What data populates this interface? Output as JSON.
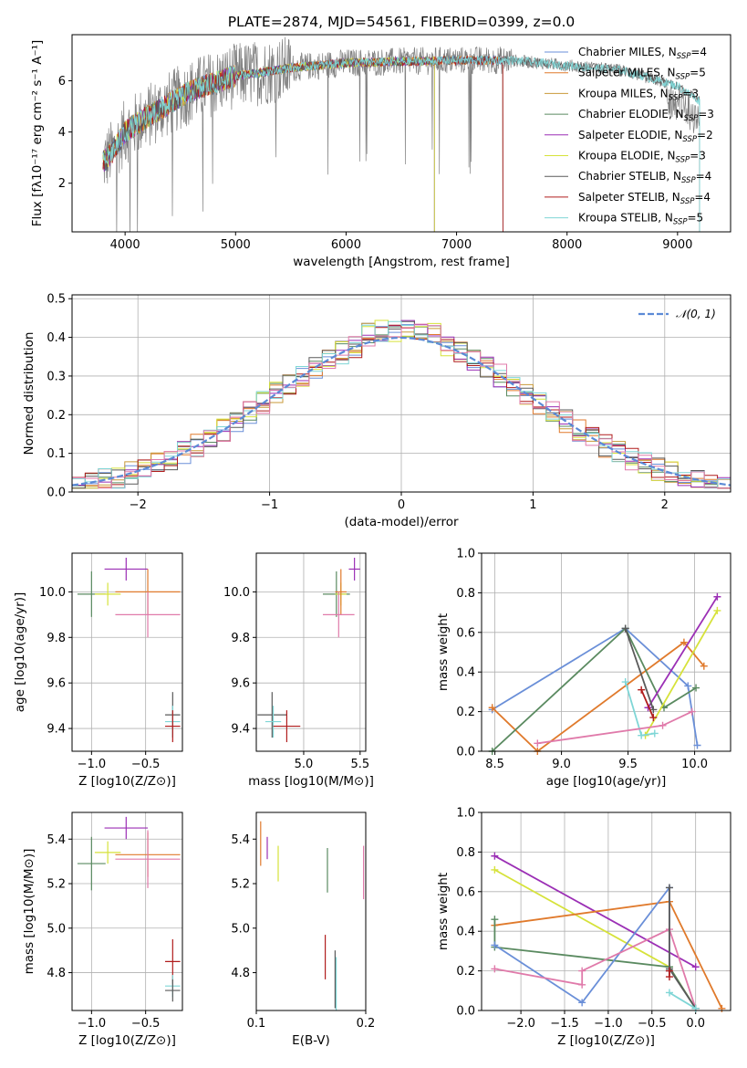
{
  "colors": {
    "chabrier_miles": "#6a8fd8",
    "salpeter_miles": "#e07a2c",
    "kroupa_miles": "#c99a3a",
    "chabrier_elodie": "#5a8a60",
    "salpeter_elodie": "#9b2fb5",
    "kroupa_elodie": "#d6e23a",
    "chabrier_stelib": "#5a5a5a",
    "salpeter_stelib": "#b01c1c",
    "kroupa_stelib": "#7fd6d6",
    "pink": "#e07aaa",
    "grey_data": "#808080"
  },
  "chart_data": [
    {
      "type": "line",
      "title": "PLATE=2874, MJD=54561, FIBERID=0399, z=0.0",
      "xlabel": "wavelength [Angstrom, rest frame]",
      "ylabel": "Flux [fλ10⁻¹⁷ erg cm⁻² s⁻¹ A⁻¹]",
      "xlim": [
        3520,
        9480
      ],
      "ylim": [
        0.1,
        7.8
      ],
      "xticks": [
        4000,
        5000,
        6000,
        7000,
        8000,
        9000
      ],
      "yticks": [
        2,
        4,
        6
      ],
      "legend_position": "upper right",
      "series": [
        {
          "name": "Chabrier MILES, N_SSP=4"
        },
        {
          "name": "Salpeter MILES, N_SSP=5"
        },
        {
          "name": "Kroupa MILES, N_SSP=3"
        },
        {
          "name": "Chabrier ELODIE, N_SSP=3"
        },
        {
          "name": "Salpeter ELODIE, N_SSP=2"
        },
        {
          "name": "Kroupa ELODIE, N_SSP=3"
        },
        {
          "name": "Chabrier STELIB, N_SSP=4"
        },
        {
          "name": "Salpeter STELIB, N_SSP=4"
        },
        {
          "name": "Kroupa STELIB, N_SSP=5"
        }
      ],
      "continuum_x": [
        3800,
        3900,
        4000,
        4200,
        4400,
        4600,
        4800,
        5000,
        5200,
        5500,
        6000,
        6500,
        7000,
        7500,
        8000,
        8500,
        9000,
        9200
      ],
      "continuum_y": [
        2.8,
        3.3,
        4.0,
        4.6,
        5.1,
        5.6,
        5.9,
        6.2,
        6.3,
        6.5,
        6.7,
        6.75,
        6.8,
        6.8,
        6.6,
        6.4,
        5.8,
        5.2
      ],
      "model_end": {
        "MILES": 7420,
        "ELODIE": 6800,
        "STELIB": 9200
      }
    },
    {
      "type": "bar",
      "xlabel": "(data-model)/error",
      "ylabel": "Normed distribution",
      "xlim": [
        -2.5,
        2.5
      ],
      "ylim": [
        0,
        0.51
      ],
      "xticks": [
        -2,
        -1,
        0,
        1,
        2
      ],
      "yticks": [
        0.0,
        0.1,
        0.2,
        0.3,
        0.4,
        0.5
      ],
      "reference_curve": {
        "name": "N(0,1)",
        "label_tex": "𝒩(0, 1)",
        "style": "dashed"
      },
      "grid": true
    },
    {
      "type": "scatter",
      "panel": "age-vs-Z",
      "xlabel": "Z [log10(Z/Z⊙)]",
      "ylabel": "age  [log10(age/yr)]",
      "xlim": [
        -1.18,
        -0.16
      ],
      "ylim": [
        9.3,
        10.17
      ],
      "xticks": [
        -1.0,
        -0.5
      ],
      "yticks": [
        9.4,
        9.6,
        9.8,
        10.0
      ],
      "points": [
        {
          "x": -1.0,
          "xerr": 0.13,
          "y": 9.99,
          "yerr": 0.1,
          "series": "chabrier_elodie"
        },
        {
          "x": -0.85,
          "xerr": 0.12,
          "y": 9.99,
          "yerr": 0.05,
          "series": "kroupa_elodie"
        },
        {
          "x": -0.68,
          "xerr": 0.2,
          "y": 10.1,
          "yerr": 0.05,
          "series": "salpeter_elodie"
        },
        {
          "x": -0.48,
          "xerr": 0.3,
          "y": 10.0,
          "yerr": 0.1,
          "series": "salpeter_miles"
        },
        {
          "x": -0.48,
          "xerr": 0.3,
          "y": 9.9,
          "yerr": 0.1,
          "series": "pink"
        },
        {
          "x": -0.25,
          "xerr": 0.07,
          "y": 9.46,
          "yerr": 0.1,
          "series": "chabrier_stelib"
        },
        {
          "x": -0.25,
          "xerr": 0.07,
          "y": 9.43,
          "yerr": 0.07,
          "series": "kroupa_stelib"
        },
        {
          "x": -0.25,
          "xerr": 0.07,
          "y": 9.41,
          "yerr": 0.07,
          "series": "salpeter_stelib"
        }
      ]
    },
    {
      "type": "scatter",
      "panel": "age-vs-mass",
      "xlabel": "mass [log10(M/M⊙)]",
      "xlim": [
        4.58,
        5.55
      ],
      "ylim": [
        9.3,
        10.17
      ],
      "xticks": [
        5.0,
        5.5
      ],
      "yticks": [
        9.4,
        9.6,
        9.8,
        10.0
      ],
      "points": [
        {
          "x": 5.29,
          "xerr": 0.12,
          "y": 9.99,
          "yerr": 0.1,
          "series": "chabrier_elodie"
        },
        {
          "x": 5.33,
          "xerr": 0.05,
          "y": 9.99,
          "yerr": 0.05,
          "series": "kroupa_elodie"
        },
        {
          "x": 5.45,
          "xerr": 0.05,
          "y": 10.1,
          "yerr": 0.05,
          "series": "salpeter_elodie"
        },
        {
          "x": 5.33,
          "xerr": 0.05,
          "y": 10.0,
          "yerr": 0.1,
          "series": "salpeter_miles"
        },
        {
          "x": 5.31,
          "xerr": 0.14,
          "y": 9.9,
          "yerr": 0.1,
          "series": "pink"
        },
        {
          "x": 4.72,
          "xerr": 0.13,
          "y": 9.46,
          "yerr": 0.1,
          "series": "chabrier_stelib"
        },
        {
          "x": 4.73,
          "xerr": 0.07,
          "y": 9.43,
          "yerr": 0.07,
          "series": "kroupa_stelib"
        },
        {
          "x": 4.85,
          "xerr": 0.12,
          "y": 9.41,
          "yerr": 0.07,
          "series": "salpeter_stelib"
        }
      ]
    },
    {
      "type": "line",
      "panel": "mass-weight-vs-age",
      "xlabel": "age  [log10(age/yr)]",
      "ylabel": "mass weight",
      "xlim": [
        8.4,
        10.27
      ],
      "ylim": [
        0,
        1.0
      ],
      "xticks": [
        8.5,
        9.0,
        9.5,
        10.0
      ],
      "yticks": [
        0.0,
        0.2,
        0.4,
        0.6,
        0.8,
        1.0
      ],
      "grid": true,
      "series": [
        {
          "key": "chabrier_miles",
          "x": [
            8.48,
            9.48,
            9.95,
            10.02
          ],
          "y": [
            0.21,
            0.62,
            0.33,
            0.03
          ]
        },
        {
          "key": "salpeter_miles",
          "x": [
            8.48,
            8.82,
            9.92,
            10.07
          ],
          "y": [
            0.22,
            0.0,
            0.55,
            0.43
          ]
        },
        {
          "key": "chabrier_elodie",
          "x": [
            8.48,
            9.48,
            9.77,
            10.01
          ],
          "y": [
            0.0,
            0.62,
            0.22,
            0.32
          ]
        },
        {
          "key": "salpeter_elodie",
          "x": [
            9.65,
            10.17
          ],
          "y": [
            0.22,
            0.78
          ]
        },
        {
          "key": "kroupa_elodie",
          "x": [
            9.63,
            10.17
          ],
          "y": [
            0.08,
            0.71
          ]
        },
        {
          "key": "chabrier_stelib",
          "x": [
            9.48,
            9.69
          ],
          "y": [
            0.62,
            0.21
          ]
        },
        {
          "key": "salpeter_stelib",
          "x": [
            9.6,
            9.69
          ],
          "y": [
            0.31,
            0.17
          ]
        },
        {
          "key": "kroupa_stelib",
          "x": [
            9.48,
            9.6,
            9.7
          ],
          "y": [
            0.35,
            0.08,
            0.09
          ]
        },
        {
          "key": "pink",
          "x": [
            8.82,
            9.76,
            9.98
          ],
          "y": [
            0.04,
            0.13,
            0.2
          ]
        }
      ]
    },
    {
      "type": "scatter",
      "panel": "mass-vs-Z",
      "xlabel": "Z [log10(Z/Z⊙)]",
      "ylabel": "mass [log10(M/M⊙)]",
      "xlim": [
        -1.18,
        -0.16
      ],
      "ylim": [
        4.63,
        5.52
      ],
      "xticks": [
        -1.0,
        -0.5
      ],
      "yticks": [
        4.8,
        5.0,
        5.2,
        5.4
      ],
      "points": [
        {
          "x": -1.0,
          "xerr": 0.13,
          "y": 5.29,
          "yerr": 0.12,
          "series": "chabrier_elodie"
        },
        {
          "x": -0.85,
          "xerr": 0.12,
          "y": 5.34,
          "yerr": 0.05,
          "series": "kroupa_elodie"
        },
        {
          "x": -0.68,
          "xerr": 0.2,
          "y": 5.45,
          "yerr": 0.05,
          "series": "salpeter_elodie"
        },
        {
          "x": -0.48,
          "xerr": 0.3,
          "y": 5.33,
          "yerr": 0.1,
          "series": "salpeter_miles"
        },
        {
          "x": -0.48,
          "xerr": 0.3,
          "y": 5.31,
          "yerr": 0.13,
          "series": "pink"
        },
        {
          "x": -0.25,
          "xerr": 0.07,
          "y": 4.85,
          "yerr": 0.1,
          "series": "salpeter_stelib"
        },
        {
          "x": -0.25,
          "xerr": 0.07,
          "y": 4.74,
          "yerr": 0.05,
          "series": "kroupa_stelib"
        },
        {
          "x": -0.25,
          "xerr": 0.07,
          "y": 4.72,
          "yerr": 0.05,
          "series": "chabrier_stelib"
        }
      ]
    },
    {
      "type": "scatter",
      "panel": "mass-vs-ebv",
      "xlabel": "E(B-V)",
      "xlim": [
        0.1,
        0.2
      ],
      "ylim": [
        4.63,
        5.52
      ],
      "xticks": [
        0.1,
        0.2
      ],
      "yticks": [
        4.8,
        5.0,
        5.2,
        5.4
      ],
      "points": [
        {
          "x": 0.104,
          "y": 5.38,
          "yerr": 0.1,
          "series": "salpeter_miles"
        },
        {
          "x": 0.11,
          "y": 5.36,
          "yerr": 0.05,
          "series": "salpeter_elodie"
        },
        {
          "x": 0.12,
          "y": 5.29,
          "yerr": 0.08,
          "series": "kroupa_elodie"
        },
        {
          "x": 0.165,
          "y": 5.26,
          "yerr": 0.1,
          "series": "chabrier_elodie"
        },
        {
          "x": 0.198,
          "y": 5.25,
          "yerr": 0.12,
          "series": "pink"
        },
        {
          "x": 0.163,
          "y": 4.87,
          "yerr": 0.1,
          "series": "salpeter_stelib"
        },
        {
          "x": 0.172,
          "y": 4.77,
          "yerr": 0.13,
          "series": "chabrier_stelib"
        },
        {
          "x": 0.173,
          "y": 4.74,
          "yerr": 0.13,
          "series": "kroupa_stelib"
        }
      ]
    },
    {
      "type": "line",
      "panel": "mass-weight-vs-Z",
      "xlabel": "Z [log10(Z/Z⊙)]",
      "ylabel": "mass weight",
      "xlim": [
        -2.45,
        0.4
      ],
      "ylim": [
        0,
        1.0
      ],
      "xticks": [
        -2.0,
        -1.5,
        -1.0,
        -0.5,
        0.0
      ],
      "yticks": [
        0.0,
        0.2,
        0.4,
        0.6,
        0.8,
        1.0
      ],
      "grid": true,
      "series": [
        {
          "key": "salpeter_elodie",
          "x": [
            -2.3,
            0.0
          ],
          "y": [
            0.78,
            0.22
          ]
        },
        {
          "key": "kroupa_elodie",
          "x": [
            -2.3,
            -0.3,
            0.0
          ],
          "y": [
            0.71,
            0.22,
            0.01
          ]
        },
        {
          "key": "salpeter_miles",
          "x": [
            -2.3,
            -0.3,
            0.3
          ],
          "y": [
            0.43,
            0.55,
            0.01
          ]
        },
        {
          "key": "chabrier_elodie",
          "x": [
            -2.3,
            -2.3,
            -0.3,
            0.0
          ],
          "y": [
            0.46,
            0.32,
            0.22,
            0.01
          ]
        },
        {
          "key": "chabrier_miles",
          "x": [
            -2.3,
            -1.3,
            -0.3,
            -0.3
          ],
          "y": [
            0.33,
            0.04,
            0.62,
            0.2
          ]
        },
        {
          "key": "pink",
          "x": [
            -2.3,
            -1.3,
            -1.3,
            -0.3,
            0.0
          ],
          "y": [
            0.21,
            0.13,
            0.2,
            0.41,
            0.01
          ]
        },
        {
          "key": "chabrier_stelib",
          "x": [
            -0.3,
            -0.3,
            0.0
          ],
          "y": [
            0.62,
            0.21,
            0.01
          ]
        },
        {
          "key": "kroupa_stelib",
          "x": [
            -0.3,
            0.0
          ],
          "y": [
            0.09,
            0.01
          ]
        },
        {
          "key": "salpeter_stelib",
          "x": [
            -0.3,
            -0.3
          ],
          "y": [
            0.2,
            0.17
          ]
        }
      ]
    }
  ]
}
